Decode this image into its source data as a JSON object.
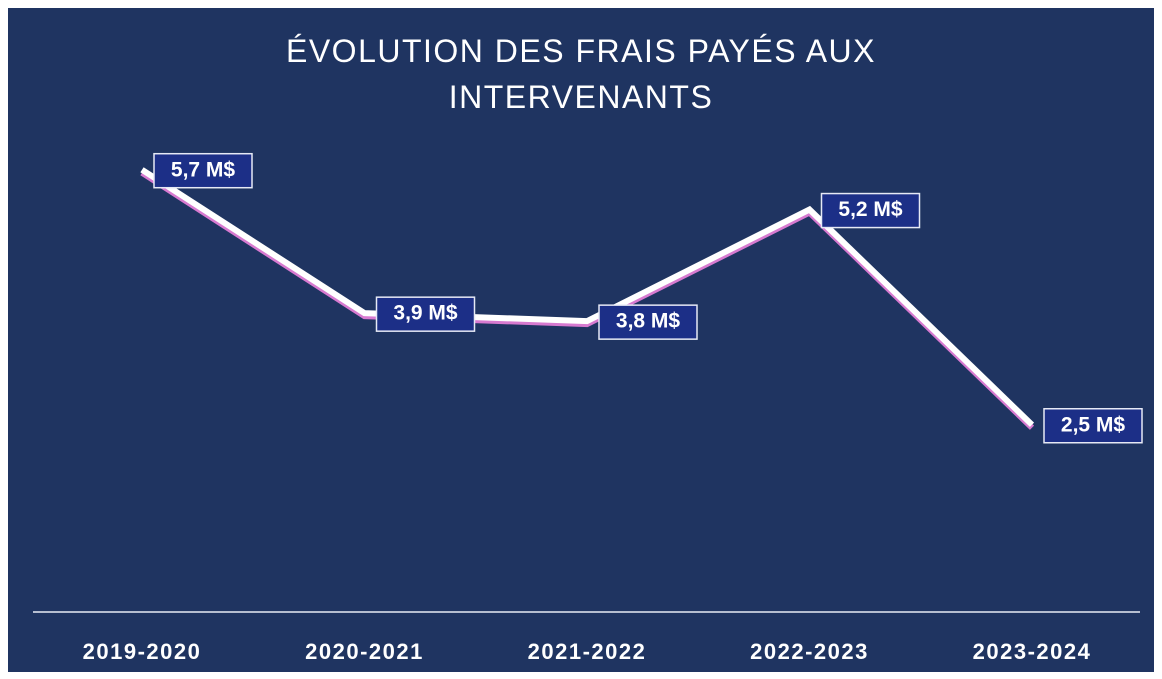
{
  "chart_data": {
    "type": "line",
    "title": "ÉVOLUTION DES FRAIS PAYÉS AUX INTERVENANTS",
    "categories": [
      "2019-2020",
      "2020-2021",
      "2021-2022",
      "2022-2023",
      "2023-2024"
    ],
    "values": [
      5.7,
      3.9,
      3.8,
      5.2,
      2.5
    ],
    "value_labels": [
      "5,7 M$",
      "3,9 M$",
      "3,8 M$",
      "5,2 M$",
      "2,5 M$"
    ],
    "color": "#ffffff"
  }
}
